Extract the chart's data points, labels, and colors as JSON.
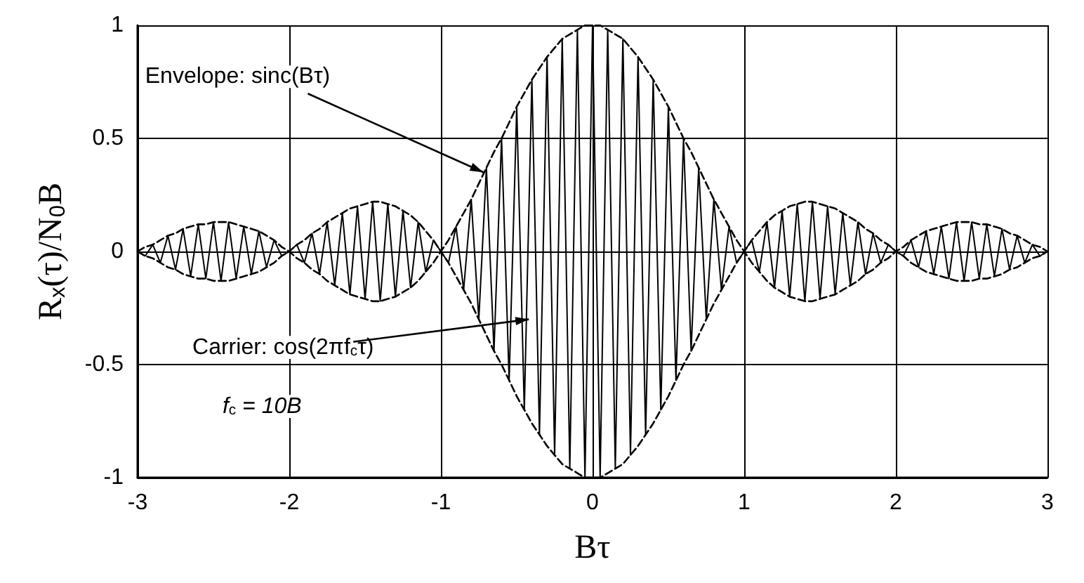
{
  "chart_data": {
    "type": "line",
    "xlabel": "Bτ",
    "ylabel": "R$_{x}$(τ)/N$_{0}$B",
    "x": [
      -3,
      -2.95,
      -2.9,
      -2.85,
      -2.8,
      -2.75,
      -2.7,
      -2.65,
      -2.6,
      -2.55,
      -2.5,
      -2.45,
      -2.4,
      -2.35,
      -2.3,
      -2.25,
      -2.2,
      -2.15,
      -2.1,
      -2.05,
      -2,
      -1.95,
      -1.9,
      -1.85,
      -1.8,
      -1.75,
      -1.7,
      -1.65,
      -1.6,
      -1.55,
      -1.5,
      -1.45,
      -1.4,
      -1.35,
      -1.3,
      -1.25,
      -1.2,
      -1.15,
      -1.1,
      -1.05,
      -1,
      -0.95,
      -0.9,
      -0.85,
      -0.8,
      -0.75,
      -0.7,
      -0.65,
      -0.6,
      -0.55,
      -0.5,
      -0.45,
      -0.4,
      -0.35,
      -0.3,
      -0.25,
      -0.2,
      -0.15,
      -0.1,
      -0.05,
      0,
      0.05,
      0.1,
      0.15,
      0.2,
      0.25,
      0.3,
      0.35,
      0.4,
      0.45,
      0.5,
      0.55,
      0.6,
      0.65,
      0.7,
      0.75,
      0.8,
      0.85,
      0.9,
      0.95,
      1,
      1.05,
      1.1,
      1.15,
      1.2,
      1.25,
      1.3,
      1.35,
      1.4,
      1.45,
      1.5,
      1.55,
      1.6,
      1.65,
      1.7,
      1.75,
      1.8,
      1.85,
      1.9,
      1.95,
      2,
      2.05,
      2.1,
      2.15,
      2.2,
      2.25,
      2.3,
      2.35,
      2.4,
      2.45,
      2.5,
      2.55,
      2.6,
      2.65,
      2.7,
      2.75,
      2.8,
      2.85,
      2.9,
      2.95,
      3
    ],
    "series": [
      {
        "color": "#000000",
        "line_style": "solid",
        "values": [
          0,
          -0.02,
          0.03,
          -0.05,
          0.07,
          -0.08,
          0.1,
          -0.11,
          0.12,
          -0.12,
          0.13,
          -0.13,
          0.13,
          -0.12,
          0.11,
          -0.1,
          0.09,
          -0.07,
          0.05,
          -0.02,
          0,
          0.03,
          -0.05,
          0.08,
          -0.1,
          0.13,
          -0.15,
          0.17,
          -0.19,
          0.2,
          -0.21,
          0.22,
          -0.22,
          0.21,
          -0.2,
          0.18,
          -0.16,
          0.13,
          -0.09,
          0.05,
          0,
          -0.05,
          0.11,
          -0.17,
          0.23,
          -0.3,
          0.37,
          -0.44,
          0.5,
          -0.57,
          0.64,
          -0.7,
          0.76,
          -0.81,
          0.86,
          -0.9,
          0.94,
          -0.96,
          0.98,
          -1.0,
          1.0,
          -1.0,
          0.98,
          -0.96,
          0.94,
          -0.9,
          0.86,
          -0.81,
          0.76,
          -0.7,
          0.64,
          -0.57,
          0.5,
          -0.44,
          0.37,
          -0.3,
          0.23,
          -0.17,
          0.11,
          -0.05,
          0,
          0.05,
          -0.09,
          0.13,
          -0.16,
          0.18,
          -0.2,
          0.21,
          -0.22,
          0.22,
          -0.21,
          0.2,
          -0.19,
          0.17,
          -0.15,
          0.13,
          -0.1,
          0.08,
          -0.05,
          0.03,
          0,
          -0.02,
          0.05,
          -0.07,
          0.09,
          -0.1,
          0.11,
          -0.12,
          0.13,
          -0.13,
          0.13,
          -0.12,
          0.12,
          -0.11,
          0.1,
          -0.08,
          0.07,
          -0.05,
          0.03,
          -0.02,
          0
        ]
      },
      {
        "color": "#000000",
        "line_style": "dashed",
        "values": [
          0,
          0.02,
          0.03,
          0.05,
          0.07,
          0.08,
          0.1,
          0.11,
          0.12,
          0.12,
          0.13,
          0.13,
          0.13,
          0.12,
          0.11,
          0.1,
          0.09,
          0.07,
          0.05,
          0.02,
          0,
          0.03,
          0.05,
          0.08,
          0.1,
          0.13,
          0.15,
          0.17,
          0.19,
          0.2,
          0.21,
          0.22,
          0.22,
          0.21,
          0.2,
          0.18,
          0.16,
          0.13,
          0.09,
          0.05,
          0,
          0.05,
          0.11,
          0.17,
          0.23,
          0.3,
          0.37,
          0.44,
          0.5,
          0.57,
          0.64,
          0.7,
          0.76,
          0.81,
          0.86,
          0.9,
          0.94,
          0.96,
          0.98,
          1.0,
          1.0,
          1.0,
          0.98,
          0.96,
          0.94,
          0.9,
          0.86,
          0.81,
          0.76,
          0.7,
          0.64,
          0.57,
          0.5,
          0.44,
          0.37,
          0.3,
          0.23,
          0.17,
          0.11,
          0.05,
          0,
          0.05,
          0.09,
          0.13,
          0.16,
          0.18,
          0.2,
          0.21,
          0.22,
          0.22,
          0.21,
          0.2,
          0.19,
          0.17,
          0.15,
          0.13,
          0.1,
          0.08,
          0.05,
          0.03,
          0,
          0.02,
          0.05,
          0.07,
          0.09,
          0.1,
          0.11,
          0.12,
          0.13,
          0.13,
          0.13,
          0.12,
          0.12,
          0.11,
          0.1,
          0.08,
          0.07,
          0.05,
          0.03,
          0.02,
          0
        ]
      },
      {
        "color": "#000000",
        "line_style": "dashed",
        "values": [
          0,
          -0.02,
          -0.03,
          -0.05,
          -0.07,
          -0.08,
          -0.1,
          -0.11,
          -0.12,
          -0.12,
          -0.13,
          -0.13,
          -0.13,
          -0.12,
          -0.11,
          -0.1,
          -0.09,
          -0.07,
          -0.05,
          -0.02,
          0,
          -0.03,
          -0.05,
          -0.08,
          -0.1,
          -0.13,
          -0.15,
          -0.17,
          -0.19,
          -0.2,
          -0.21,
          -0.22,
          -0.22,
          -0.21,
          -0.2,
          -0.18,
          -0.16,
          -0.13,
          -0.09,
          -0.05,
          0,
          -0.05,
          -0.11,
          -0.17,
          -0.23,
          -0.3,
          -0.37,
          -0.44,
          -0.5,
          -0.57,
          -0.64,
          -0.7,
          -0.76,
          -0.81,
          -0.86,
          -0.9,
          -0.94,
          -0.96,
          -0.98,
          -1.0,
          -1.0,
          -1.0,
          -0.98,
          -0.96,
          -0.94,
          -0.9,
          -0.86,
          -0.81,
          -0.76,
          -0.7,
          -0.64,
          -0.57,
          -0.5,
          -0.44,
          -0.37,
          -0.3,
          -0.23,
          -0.17,
          -0.11,
          -0.05,
          0,
          -0.05,
          -0.09,
          -0.13,
          -0.16,
          -0.18,
          -0.2,
          -0.21,
          -0.22,
          -0.22,
          -0.21,
          -0.2,
          -0.19,
          -0.17,
          -0.15,
          -0.13,
          -0.1,
          -0.08,
          -0.05,
          -0.03,
          0,
          -0.02,
          -0.05,
          -0.07,
          -0.09,
          -0.1,
          -0.11,
          -0.12,
          -0.13,
          -0.13,
          -0.13,
          -0.12,
          -0.12,
          -0.11,
          -0.1,
          -0.08,
          -0.07,
          -0.05,
          -0.03,
          -0.02,
          0
        ]
      }
    ],
    "xlim": [
      -3,
      3
    ],
    "xticks": [
      -3,
      -2,
      -1,
      0,
      1,
      2,
      3
    ],
    "ylim": [
      -1,
      1
    ],
    "yticks": [
      -1,
      -0.5,
      0,
      0.5,
      1
    ],
    "grid": true,
    "marker": "none",
    "annotations": [
      {
        "text": "Envelope: sinc(Bτ)",
        "x": -0.72,
        "y": 0.35
      },
      {
        "text": "Carrier: cos(2πf$_{c}$τ)",
        "x": -0.42,
        "y": -0.3
      },
      "f$_{c}$ = 10B"
    ]
  }
}
